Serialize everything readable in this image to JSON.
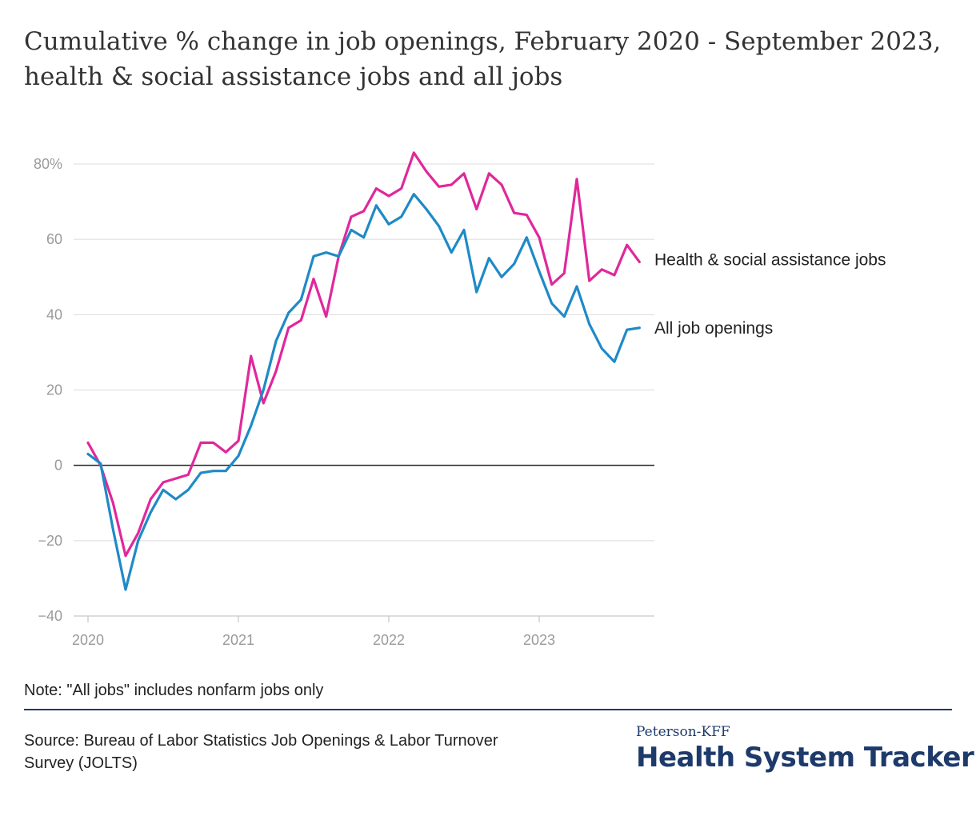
{
  "title": "Cumulative % change in job openings, February 2020 - September 2023, health & social assistance jobs and all jobs",
  "note": "Note: \"All jobs\" includes nonfarm jobs only",
  "source": "Source: Bureau of Labor Statistics Job Openings & Labor Turnover Survey (JOLTS)",
  "brand": {
    "top": "Peterson-KFF",
    "main": "Health System Tracker",
    "color": "#1d3a6b"
  },
  "chart_data": {
    "type": "line",
    "title": "Cumulative % change in job openings, February 2020 - September 2023, health & social assistance jobs and all jobs",
    "xlabel": "",
    "ylabel": "",
    "x_start": "2020-01",
    "x_end": "2023-09",
    "x_ticks": [
      "2020",
      "2021",
      "2022",
      "2023"
    ],
    "y_ticks": [
      "80%",
      "60",
      "40",
      "20",
      "0",
      "−20",
      "−40"
    ],
    "ylim": [
      -40,
      80
    ],
    "grid": true,
    "series": [
      {
        "name": "Health & social assistance jobs",
        "color": "#e0289b",
        "values": [
          6,
          0,
          -10,
          -24,
          -18,
          -9,
          -4.5,
          -3.5,
          -2.5,
          6,
          6,
          3.5,
          6.5,
          29,
          16.5,
          25,
          36.5,
          38.5,
          49.5,
          39.5,
          55.5,
          66,
          67.5,
          73.5,
          71.5,
          73.5,
          83,
          78,
          74,
          74.5,
          77.5,
          68,
          77.5,
          74.5,
          67,
          66.5,
          60.5,
          48,
          51,
          76,
          49,
          52,
          50.5,
          58.5,
          54
        ]
      },
      {
        "name": "All job openings",
        "color": "#1f8ac6",
        "values": [
          3,
          0.5,
          -17,
          -33,
          -20,
          -12.5,
          -6.5,
          -9,
          -6.5,
          -2,
          -1.5,
          -1.5,
          2.5,
          10.5,
          20,
          33,
          40.5,
          44,
          55.5,
          56.5,
          55.5,
          62.5,
          60.5,
          69,
          64,
          66,
          72,
          68,
          63.5,
          56.5,
          62.5,
          46,
          55,
          50,
          53.5,
          60.5,
          51.5,
          43,
          39.5,
          47.5,
          37.5,
          31,
          27.5,
          36,
          36.5
        ]
      }
    ]
  }
}
